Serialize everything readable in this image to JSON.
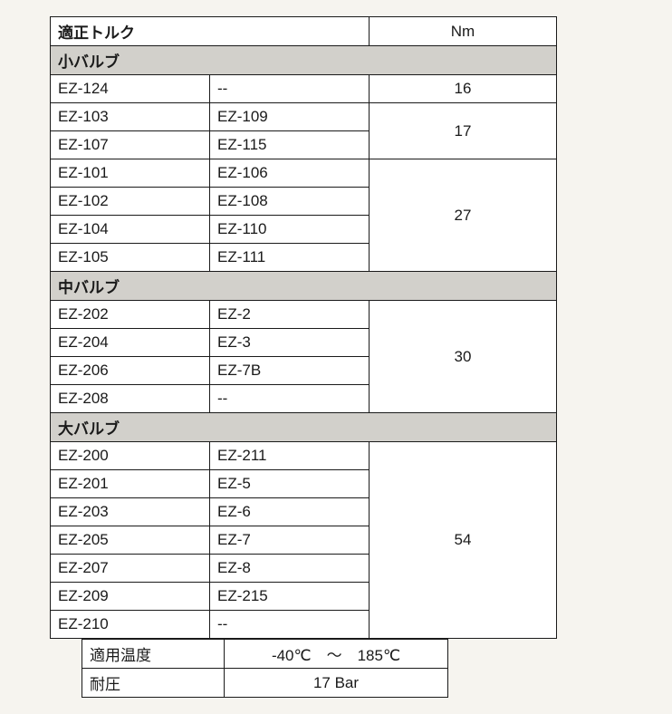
{
  "outer_background": "#f6f4ef",
  "cell_background": "#ffffff",
  "section_background": "#d2d0cb",
  "border_color": "#1a1a1a",
  "text_color": "#1a1a1a",
  "font_size_body": 17,
  "font_size_header": 19,
  "header": {
    "title": "適正トルク",
    "unit": "Nm"
  },
  "sections": {
    "small": {
      "label": "小バルブ",
      "groups": [
        {
          "rows": [
            [
              "EZ-124",
              "--"
            ]
          ],
          "value": "16"
        },
        {
          "rows": [
            [
              "EZ-103",
              "EZ-109"
            ],
            [
              "EZ-107",
              "EZ-115"
            ]
          ],
          "value": "17"
        },
        {
          "rows": [
            [
              "EZ-101",
              "EZ-106"
            ],
            [
              "EZ-102",
              "EZ-108"
            ],
            [
              "EZ-104",
              "EZ-110"
            ],
            [
              "EZ-105",
              "EZ-111"
            ]
          ],
          "value": "27"
        }
      ]
    },
    "medium": {
      "label": "中バルブ",
      "groups": [
        {
          "rows": [
            [
              "EZ-202",
              "EZ-2"
            ],
            [
              "EZ-204",
              "EZ-3"
            ],
            [
              "EZ-206",
              "EZ-7B"
            ],
            [
              "EZ-208",
              "--"
            ]
          ],
          "value": "30"
        }
      ]
    },
    "large": {
      "label": "大バルブ",
      "groups": [
        {
          "rows": [
            [
              "EZ-200",
              "EZ-211"
            ],
            [
              "EZ-201",
              "EZ-5"
            ],
            [
              "EZ-203",
              "EZ-6"
            ],
            [
              "EZ-205",
              "EZ-7"
            ],
            [
              "EZ-207",
              "EZ-8"
            ],
            [
              "EZ-209",
              "EZ-215"
            ],
            [
              "EZ-210",
              "--"
            ]
          ],
          "value": "54"
        }
      ]
    }
  },
  "spec": {
    "temp_label": "適用温度",
    "temp_value": "-40℃　～　185℃",
    "pressure_label": "耐圧",
    "pressure_value": "17 Bar"
  }
}
